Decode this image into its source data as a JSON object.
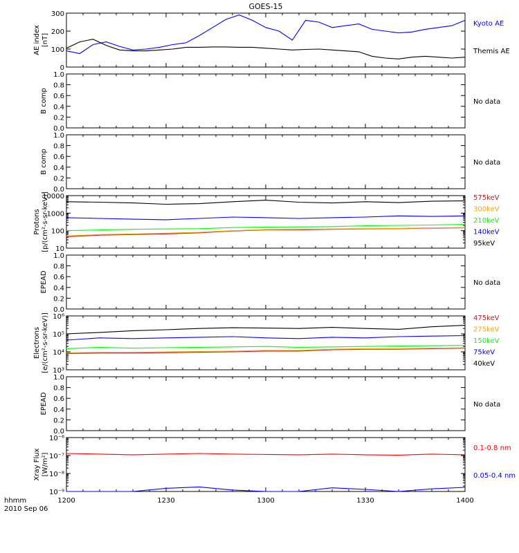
{
  "title": "GOES-15",
  "footer": {
    "hhmm": "hhmm",
    "date": "2010 Sep 06"
  },
  "x_axis": {
    "labels": [
      "1200",
      "1230",
      "1300",
      "1330",
      "1400"
    ],
    "range_min": [
      0,
      120
    ]
  },
  "chart_data": [
    {
      "type": "line",
      "id": "ae",
      "ylabel": [
        "AE index",
        "[nT]"
      ],
      "ylim": [
        0,
        300
      ],
      "yticks": [
        0,
        100,
        200,
        300
      ],
      "x_minutes": [
        0,
        4,
        8,
        12,
        16,
        20,
        24,
        28,
        32,
        36,
        40,
        44,
        48,
        52,
        56,
        60,
        64,
        68,
        72,
        76,
        80,
        84,
        88,
        92,
        96,
        100,
        104,
        108,
        112,
        116,
        120
      ],
      "series": [
        {
          "name": "Kyoto AE",
          "color": "#0000ff",
          "values": [
            90,
            75,
            125,
            140,
            115,
            95,
            100,
            110,
            125,
            135,
            175,
            220,
            265,
            290,
            260,
            220,
            200,
            150,
            260,
            250,
            220,
            230,
            240,
            210,
            200,
            190,
            195,
            210,
            220,
            230,
            260
          ]
        },
        {
          "name": "Themis AE",
          "color": "#000000",
          "values": [
            105,
            140,
            155,
            120,
            95,
            90,
            90,
            95,
            100,
            110,
            110,
            112,
            112,
            110,
            110,
            105,
            100,
            95,
            98,
            100,
            95,
            90,
            85,
            60,
            50,
            45,
            55,
            60,
            55,
            50,
            55
          ]
        }
      ]
    },
    {
      "type": "line",
      "id": "bcomp1",
      "ylabel": [
        "B comp"
      ],
      "ylim": [
        0,
        1
      ],
      "yticks": [
        0.0,
        0.2,
        0.4,
        0.6,
        0.8,
        1.0
      ],
      "no_data": "No data",
      "series": []
    },
    {
      "type": "line",
      "id": "bcomp2",
      "ylabel": [
        "B comp"
      ],
      "ylim": [
        0,
        1
      ],
      "yticks": [
        0.0,
        0.2,
        0.4,
        0.6,
        0.8,
        1.0
      ],
      "no_data": "No data",
      "series": []
    },
    {
      "type": "line",
      "id": "protons",
      "log": true,
      "ylabel": [
        "Protons",
        "[p/(cm²-s-sr-keV)]"
      ],
      "ylim": [
        10,
        10000
      ],
      "yticks": [
        10,
        100,
        1000,
        10000
      ],
      "ytick_labels": [
        "10",
        "100",
        "1000",
        "10000"
      ],
      "x_minutes": [
        0,
        10,
        20,
        30,
        40,
        50,
        60,
        70,
        80,
        90,
        100,
        110,
        120
      ],
      "series": [
        {
          "name": "575keV",
          "color": "#b22222",
          "values": [
            45,
            55,
            60,
            65,
            75,
            95,
            110,
            110,
            120,
            125,
            130,
            140,
            145
          ]
        },
        {
          "name": "300keV",
          "color": "#ffa500",
          "values": [
            50,
            60,
            65,
            72,
            80,
            100,
            115,
            118,
            125,
            130,
            135,
            145,
            150
          ]
        },
        {
          "name": "210keV",
          "color": "#00ff00",
          "values": [
            100,
            110,
            120,
            125,
            130,
            150,
            160,
            165,
            170,
            190,
            200,
            210,
            230
          ]
        },
        {
          "name": "140keV",
          "color": "#0000ff",
          "values": [
            550,
            500,
            450,
            420,
            500,
            600,
            550,
            500,
            550,
            600,
            700,
            650,
            700
          ]
        },
        {
          "name": "95keV",
          "color": "#000000",
          "values": [
            4500,
            4200,
            3800,
            3200,
            3500,
            4500,
            5500,
            4200,
            3800,
            4500,
            4000,
            4800,
            5000
          ]
        }
      ]
    },
    {
      "type": "line",
      "id": "epead1",
      "ylabel": [
        "EPEAD"
      ],
      "ylim": [
        0,
        1
      ],
      "yticks": [
        0.0,
        0.2,
        0.4,
        0.6,
        0.8,
        1.0
      ],
      "no_data": "No data",
      "series": []
    },
    {
      "type": "line",
      "id": "electrons",
      "log": true,
      "ylabel": [
        "Electrons",
        "[e/(cm²-s-sr-keV)]"
      ],
      "ylim": [
        1000,
        1000000
      ],
      "yticks": [
        1000,
        10000,
        100000,
        1000000
      ],
      "ytick_labels": [
        "10³",
        "10⁴",
        "10⁵",
        "10⁶"
      ],
      "x_minutes": [
        0,
        10,
        20,
        30,
        40,
        50,
        60,
        70,
        80,
        90,
        100,
        110,
        120
      ],
      "series": [
        {
          "name": "475keV",
          "color": "#b22222",
          "values": [
            8000,
            8500,
            8500,
            9000,
            9500,
            10000,
            11000,
            11000,
            13000,
            14000,
            14000,
            15000,
            16000
          ]
        },
        {
          "name": "275keV",
          "color": "#ffa500",
          "values": [
            9000,
            9500,
            9500,
            10000,
            10500,
            11000,
            12000,
            12000,
            14000,
            15000,
            15000,
            16000,
            17000
          ]
        },
        {
          "name": "150keV",
          "color": "#00ff00",
          "values": [
            15000,
            18000,
            16000,
            17000,
            18000,
            19000,
            20000,
            18000,
            19000,
            20000,
            21000,
            22000,
            23000
          ]
        },
        {
          "name": "75keV",
          "color": "#0000ff",
          "values": [
            45000,
            60000,
            55000,
            60000,
            65000,
            70000,
            60000,
            55000,
            65000,
            60000,
            70000,
            75000,
            80000
          ]
        },
        {
          "name": "40keV",
          "color": "#000000",
          "values": [
            100000,
            120000,
            150000,
            170000,
            200000,
            220000,
            210000,
            200000,
            230000,
            200000,
            180000,
            250000,
            300000
          ]
        }
      ]
    },
    {
      "type": "line",
      "id": "epead2",
      "ylabel": [
        "EPEAD"
      ],
      "ylim": [
        0,
        1
      ],
      "yticks": [
        0.0,
        0.2,
        0.4,
        0.6,
        0.8,
        1.0
      ],
      "no_data": "No data",
      "series": []
    },
    {
      "type": "line",
      "id": "xray",
      "log": true,
      "ylabel": [
        "Xray Flux",
        "[W/m²]"
      ],
      "ylim": [
        1e-09,
        1e-06
      ],
      "yticks": [
        1e-09,
        1e-08,
        1e-07,
        1e-06
      ],
      "ytick_labels": [
        "10⁻⁹",
        "10⁻⁸",
        "10⁻⁷",
        "10⁻⁶"
      ],
      "x_minutes": [
        0,
        10,
        20,
        30,
        40,
        50,
        60,
        70,
        80,
        90,
        100,
        110,
        120
      ],
      "series": [
        {
          "name": "0.1-0.8 nm",
          "color": "#ff0000",
          "values": [
            1.3e-07,
            1.2e-07,
            1.1e-07,
            1.2e-07,
            1.3e-07,
            1.2e-07,
            1.15e-07,
            1.1e-07,
            1.2e-07,
            1.1e-07,
            1.05e-07,
            1.2e-07,
            1.1e-07
          ]
        },
        {
          "name": "0.05-0.4 nm",
          "color": "#0000ff",
          "values": [
            1e-09,
            1e-09,
            1e-09,
            1.5e-09,
            1.8e-09,
            1.2e-09,
            1e-09,
            1e-09,
            1.6e-09,
            1.3e-09,
            1e-09,
            1.4e-09,
            1.7e-09
          ]
        }
      ]
    }
  ]
}
